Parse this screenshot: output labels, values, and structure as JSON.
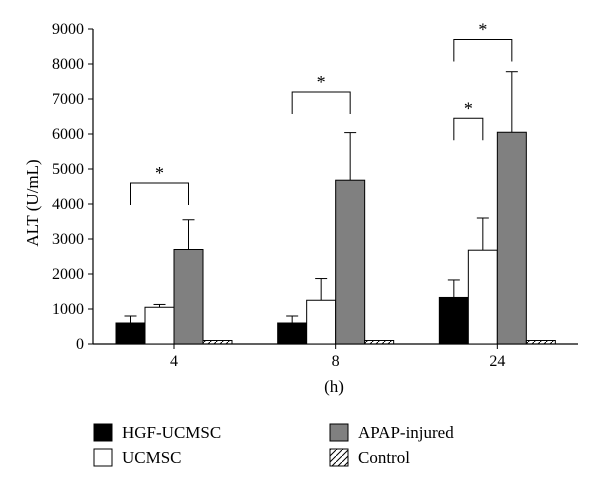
{
  "chart_data": {
    "type": "bar",
    "title": "",
    "xlabel": "(h)",
    "ylabel": "ALT (U/mL)",
    "ylim": [
      0,
      9000
    ],
    "yticks": [
      0,
      1000,
      2000,
      3000,
      4000,
      5000,
      6000,
      7000,
      8000,
      9000
    ],
    "categories": [
      "4",
      "8",
      "24"
    ],
    "grid": false,
    "legend_position": "bottom",
    "series": [
      {
        "name": "HGF-UCMSC",
        "values": [
          600,
          600,
          1330
        ],
        "errors": [
          200,
          200,
          500
        ],
        "fill": "#000000",
        "pattern": "solid"
      },
      {
        "name": "UCMSC",
        "values": [
          1050,
          1250,
          2680
        ],
        "errors": [
          80,
          620,
          920
        ],
        "fill": "#ffffff",
        "pattern": "solid"
      },
      {
        "name": "APAP-injured",
        "values": [
          2700,
          4680,
          6050
        ],
        "errors": [
          850,
          1360,
          1730
        ],
        "fill": "#808080",
        "pattern": "solid"
      },
      {
        "name": "Control",
        "values": [
          100,
          100,
          100
        ],
        "errors": [
          0,
          0,
          0
        ],
        "fill": "#ffffff",
        "pattern": "hatch"
      }
    ],
    "annotations": [
      {
        "text": "*",
        "category": "4",
        "from_series": "HGF-UCMSC",
        "to_series": "APAP-injured",
        "bracket_y": 4600
      },
      {
        "text": "*",
        "category": "8",
        "from_series": "HGF-UCMSC",
        "to_series": "APAP-injured",
        "bracket_y": 7200
      },
      {
        "text": "*",
        "category": "24",
        "from_series": "HGF-UCMSC",
        "to_series": "UCMSC",
        "bracket_y": 6450
      },
      {
        "text": "*",
        "category": "24",
        "from_series": "HGF-UCMSC",
        "to_series": "APAP-injured",
        "bracket_y": 8700
      }
    ]
  }
}
